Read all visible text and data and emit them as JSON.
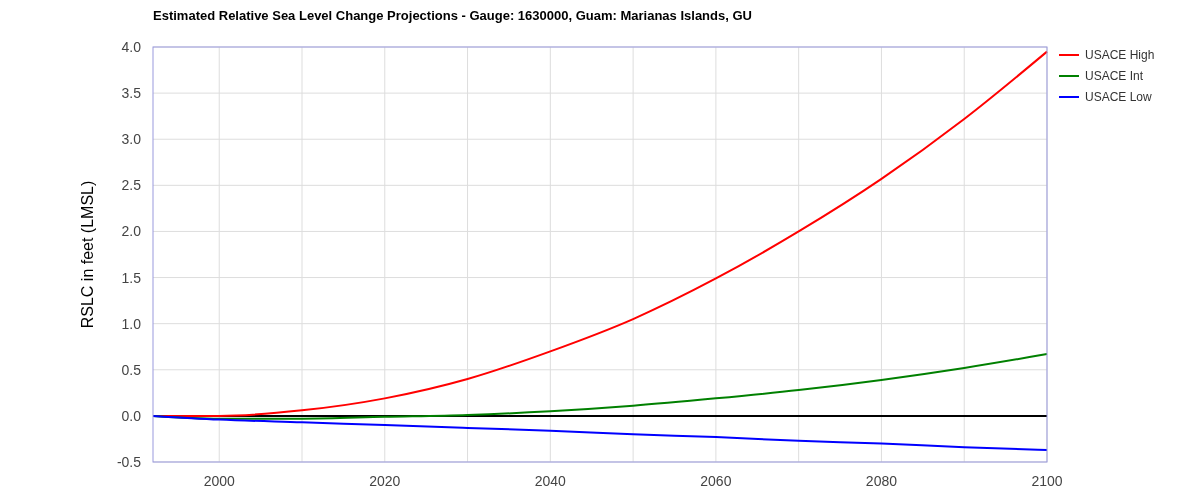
{
  "chart_data": {
    "type": "line",
    "title": "Estimated Relative Sea Level Change Projections - Gauge: 1630000, Guam: Marianas Islands, GU",
    "ylabel": "RSLC in feet (LMSL)",
    "x": [
      1992,
      2000,
      2010,
      2020,
      2030,
      2040,
      2050,
      2060,
      2070,
      2080,
      2090,
      2100
    ],
    "series": [
      {
        "name": "USACE High",
        "color": "#ff0000",
        "values": [
          0,
          0,
          0.06,
          0.19,
          0.4,
          0.7,
          1.05,
          1.49,
          2.0,
          2.57,
          3.22,
          3.95
        ]
      },
      {
        "name": "USACE Int",
        "color": "#008000",
        "values": [
          0,
          -0.03,
          -0.03,
          -0.01,
          0.01,
          0.05,
          0.11,
          0.19,
          0.28,
          0.39,
          0.52,
          0.67
        ]
      },
      {
        "name": "USACE Low",
        "color": "#0000ff",
        "values": [
          0,
          -0.04,
          -0.07,
          -0.1,
          -0.13,
          -0.16,
          -0.2,
          -0.23,
          -0.27,
          -0.3,
          -0.34,
          -0.37
        ]
      }
    ],
    "xlim": [
      1992,
      2100
    ],
    "xticks": [
      2000,
      {
        "value": 2010,
        "label": null
      },
      2020,
      {
        "value": 2030,
        "label": null
      },
      2040,
      {
        "value": 2050,
        "label": null
      },
      2060,
      {
        "value": 2070,
        "label": null
      },
      2080,
      {
        "value": 2090,
        "label": null
      },
      2100
    ],
    "ylim": [
      -0.5,
      4
    ],
    "yticks": [
      {
        "value": -0.5,
        "label": "-0.5"
      },
      {
        "value": 0,
        "label": "0.0"
      },
      {
        "value": 0.5,
        "label": "0.5"
      },
      {
        "value": 1,
        "label": "1.0"
      },
      {
        "value": 1.5,
        "label": "1.5"
      },
      {
        "value": 2,
        "label": "2.0"
      },
      {
        "value": 2.5,
        "label": "2.5"
      },
      {
        "value": 3,
        "label": "3.0"
      },
      {
        "value": 3.5,
        "label": "3.5"
      },
      {
        "value": 4,
        "label": "4.0"
      }
    ],
    "ref_lines": [
      {
        "axis": "y",
        "value": 0,
        "color": "#000000"
      }
    ],
    "grid": true,
    "legend": "top right",
    "line_style": "solid",
    "marker": "none"
  }
}
